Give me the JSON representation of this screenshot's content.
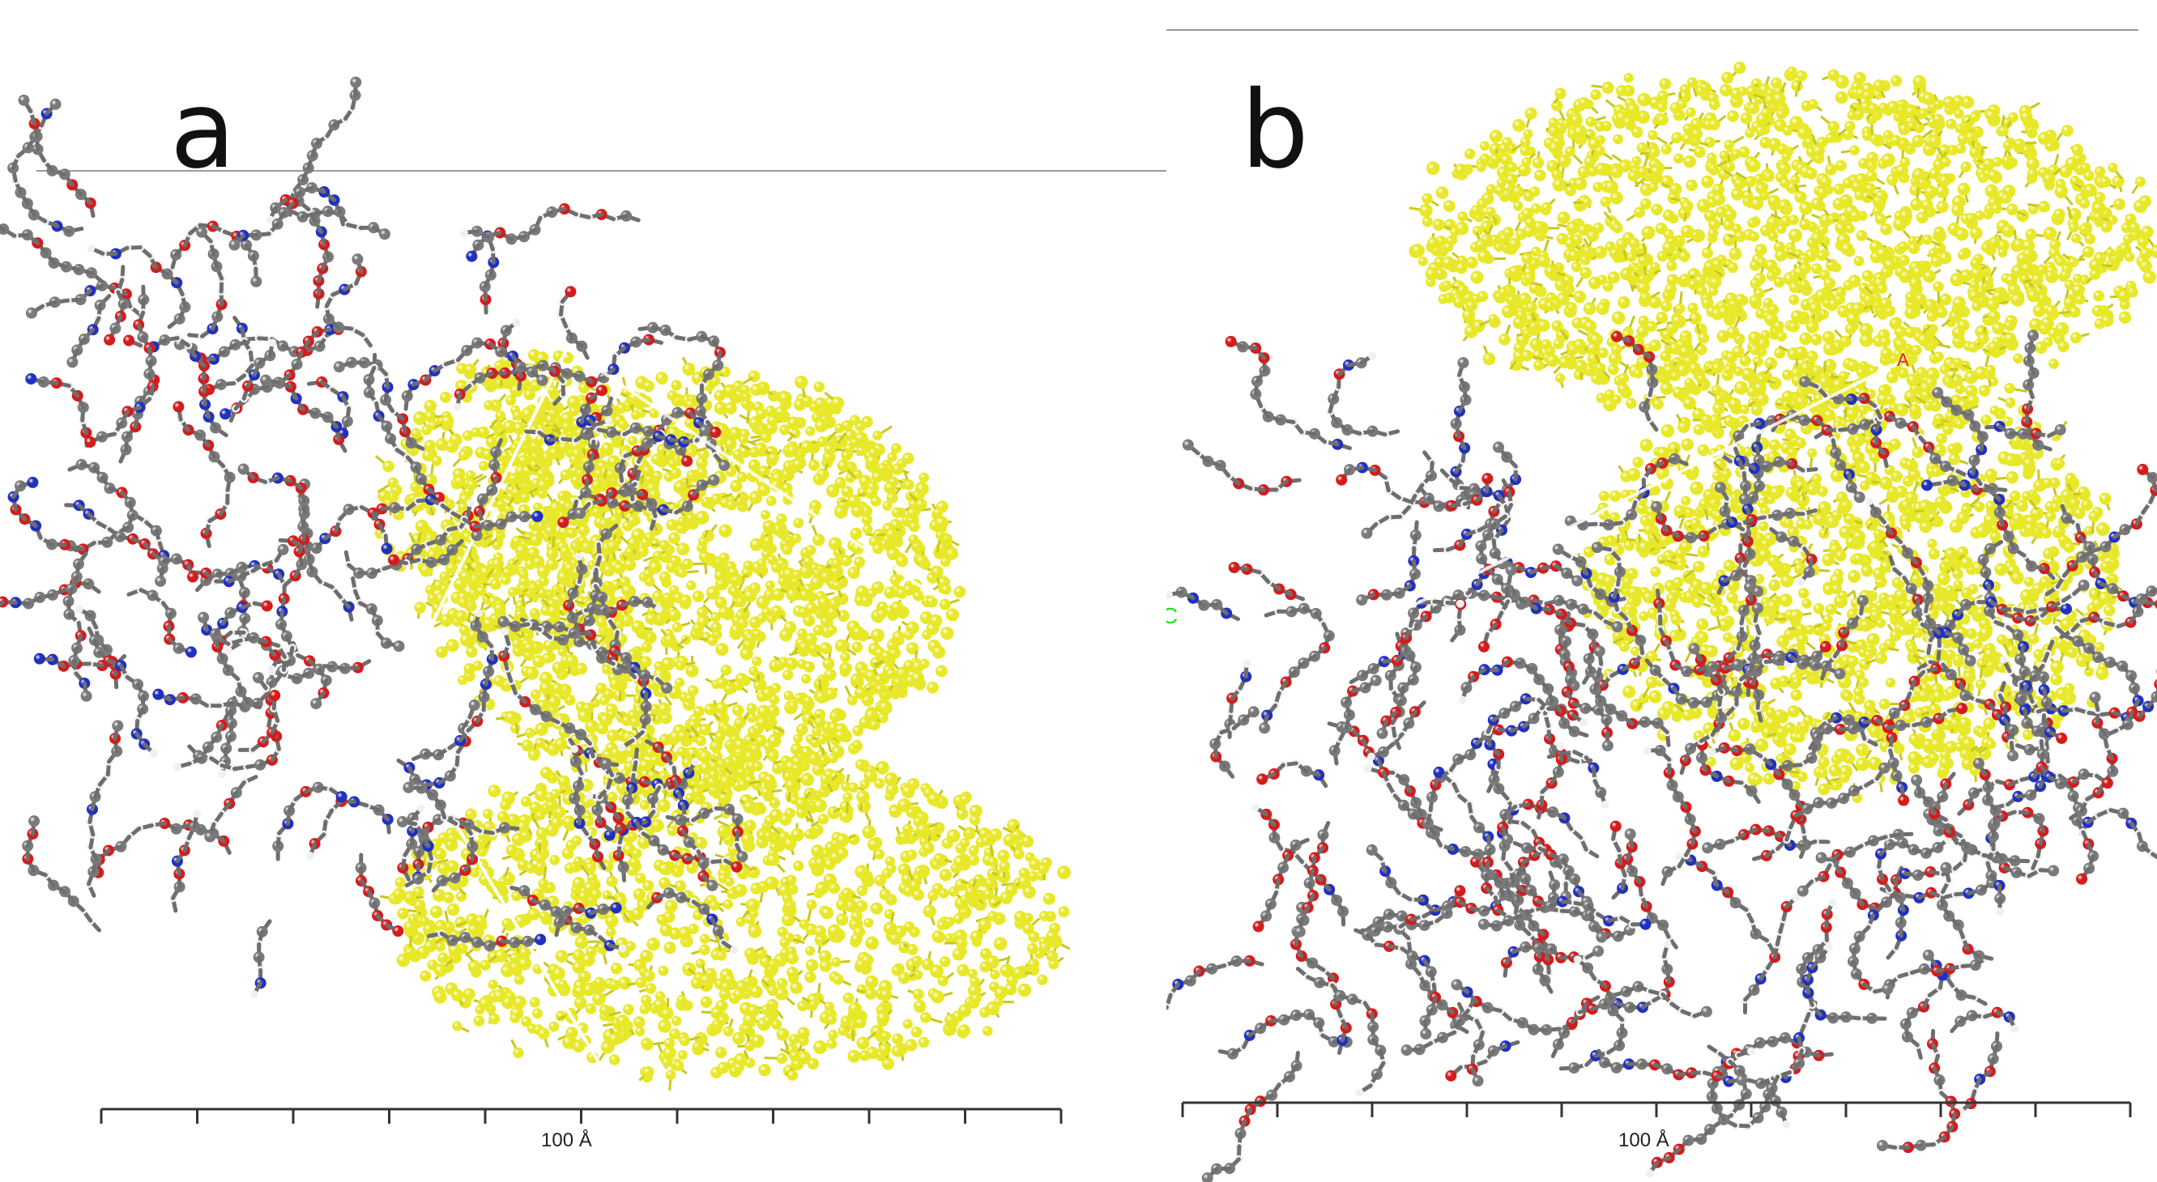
{
  "panels": [
    {
      "label": "a",
      "scale_label": "100 Å"
    },
    {
      "label": "b",
      "scale_label": "100 Å",
      "axis_label": "C",
      "cell_corner_label": "A"
    }
  ],
  "colors": {
    "yellow_atoms": "#e8e82a",
    "carbon": "#7a7a7a",
    "oxygen": "#d41c1c",
    "nitrogen": "#2030c0",
    "hydrogen": "#f0f0f0",
    "axis_c": "#22dd22"
  }
}
